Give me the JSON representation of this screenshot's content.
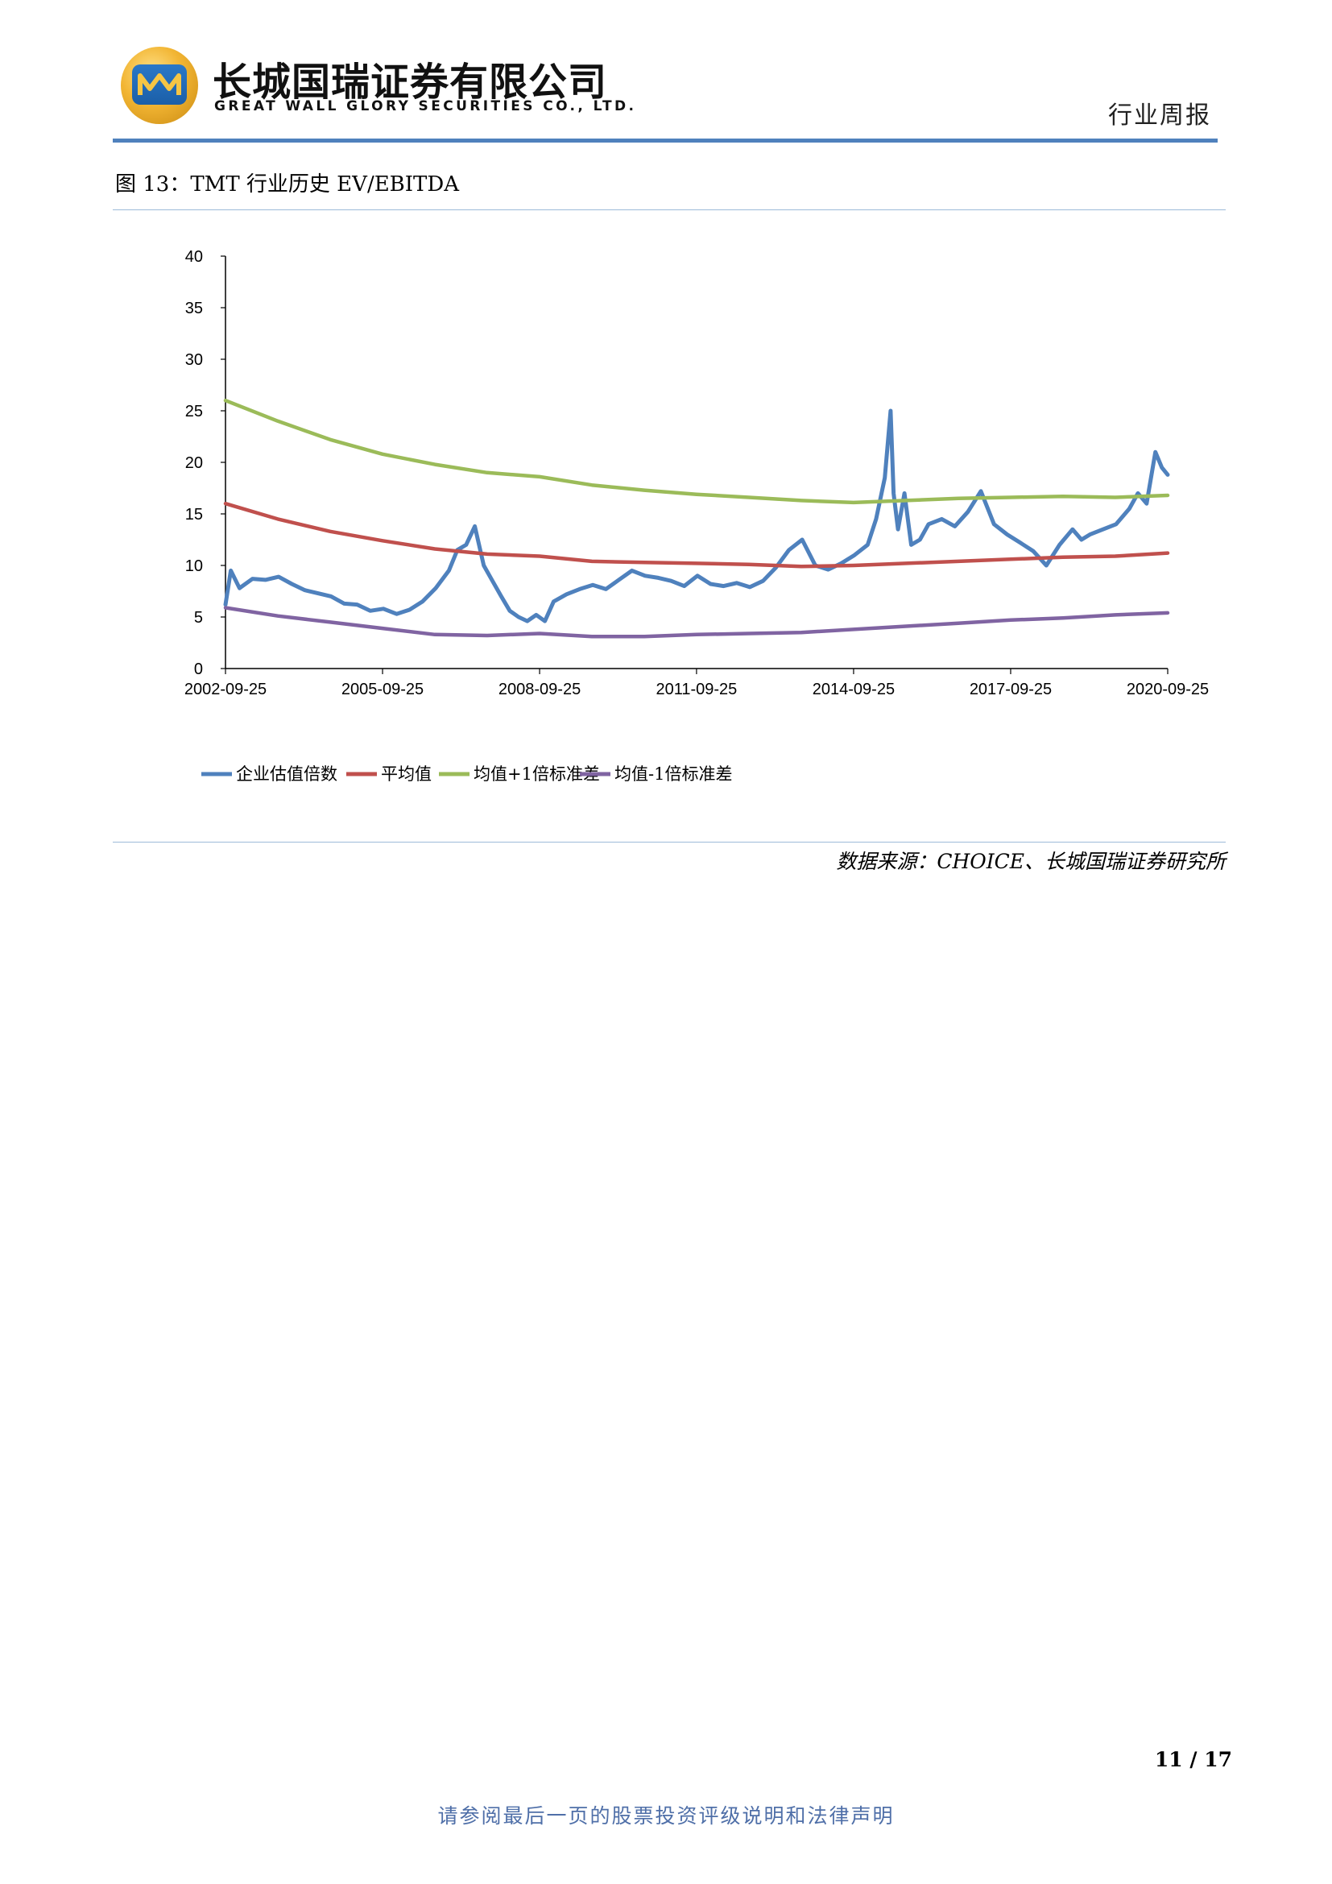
{
  "header": {
    "company_cn": "长城国瑞证券有限公司",
    "company_en": "GREAT WALL GLORY SECURITIES CO., LTD.",
    "report_type": "行业周报"
  },
  "figure": {
    "title": "图 13：TMT 行业历史 EV/EBITDA"
  },
  "chart_data": {
    "type": "line",
    "title": "",
    "xlabel": "",
    "ylabel": "",
    "ylim": [
      0,
      40
    ],
    "yticks": [
      0,
      5,
      10,
      15,
      20,
      25,
      30,
      35,
      40
    ],
    "xticks": [
      "2002-09-25",
      "2005-09-25",
      "2008-09-25",
      "2011-09-25",
      "2014-09-25",
      "2017-09-25",
      "2020-09-25"
    ],
    "xrange": [
      "2002-09-25",
      "2020-09-25"
    ],
    "grid": false,
    "legend_position": "bottom",
    "series": [
      {
        "name": "企业估值倍数",
        "color": "#4f81bd",
        "x": [
          "2002-09-25",
          "2002-11-01",
          "2003-01-01",
          "2003-04-01",
          "2003-07-01",
          "2003-10-01",
          "2004-01-01",
          "2004-04-01",
          "2004-07-01",
          "2004-10-01",
          "2005-01-01",
          "2005-04-01",
          "2005-07-01",
          "2005-10-01",
          "2006-01-01",
          "2006-04-01",
          "2006-07-01",
          "2006-10-01",
          "2007-01-01",
          "2007-03-01",
          "2007-05-01",
          "2007-07-01",
          "2007-09-01",
          "2007-11-01",
          "2008-01-01",
          "2008-03-01",
          "2008-05-01",
          "2008-07-01",
          "2008-09-01",
          "2008-11-01",
          "2009-01-01",
          "2009-04-01",
          "2009-07-01",
          "2009-10-01",
          "2010-01-01",
          "2010-04-01",
          "2010-07-01",
          "2010-10-01",
          "2011-01-01",
          "2011-04-01",
          "2011-07-01",
          "2011-10-01",
          "2012-01-01",
          "2012-04-01",
          "2012-07-01",
          "2012-10-01",
          "2013-01-01",
          "2013-04-01",
          "2013-07-01",
          "2013-10-01",
          "2014-01-01",
          "2014-04-01",
          "2014-07-01",
          "2014-10-01",
          "2015-01-01",
          "2015-03-01",
          "2015-05-01",
          "2015-06-10",
          "2015-07-01",
          "2015-08-01",
          "2015-09-15",
          "2015-11-01",
          "2016-01-01",
          "2016-03-01",
          "2016-06-01",
          "2016-09-01",
          "2016-12-01",
          "2017-03-01",
          "2017-06-01",
          "2017-09-01",
          "2017-12-01",
          "2018-03-01",
          "2018-06-01",
          "2018-09-01",
          "2018-12-01",
          "2019-02-01",
          "2019-04-01",
          "2019-07-01",
          "2019-10-01",
          "2020-01-01",
          "2020-03-01",
          "2020-05-01",
          "2020-07-01",
          "2020-08-15",
          "2020-09-25"
        ],
        "values": [
          6.2,
          9.5,
          7.8,
          8.7,
          8.6,
          8.9,
          8.2,
          7.6,
          7.3,
          7.0,
          6.3,
          6.2,
          5.6,
          5.8,
          5.3,
          5.7,
          6.5,
          7.8,
          9.5,
          11.5,
          12.0,
          13.8,
          10.0,
          8.5,
          7.0,
          5.6,
          5.0,
          4.6,
          5.2,
          4.6,
          6.5,
          7.2,
          7.7,
          8.1,
          7.7,
          8.6,
          9.5,
          9.0,
          8.8,
          8.5,
          8.0,
          9.0,
          8.2,
          8.0,
          8.3,
          7.9,
          8.5,
          9.8,
          11.5,
          12.5,
          10.0,
          9.6,
          10.2,
          11.0,
          12.0,
          14.5,
          18.5,
          25.0,
          17.0,
          13.5,
          17.0,
          12.0,
          12.5,
          14.0,
          14.5,
          13.8,
          15.2,
          17.2,
          14.0,
          13.0,
          12.2,
          11.4,
          10.0,
          12.0,
          13.5,
          12.5,
          13.0,
          13.5,
          14.0,
          15.5,
          17.0,
          16.0,
          21.0,
          19.5,
          18.8
        ]
      },
      {
        "name": "平均值",
        "color": "#c0504d",
        "x": [
          "2002-09-25",
          "2003-09-25",
          "2004-09-25",
          "2005-09-25",
          "2006-09-25",
          "2007-09-25",
          "2008-09-25",
          "2009-09-25",
          "2010-09-25",
          "2011-09-25",
          "2012-09-25",
          "2013-09-25",
          "2014-09-25",
          "2015-09-25",
          "2016-09-25",
          "2017-09-25",
          "2018-09-25",
          "2019-09-25",
          "2020-09-25"
        ],
        "values": [
          16.0,
          14.5,
          13.3,
          12.4,
          11.6,
          11.1,
          10.9,
          10.4,
          10.3,
          10.2,
          10.1,
          9.9,
          10.0,
          10.2,
          10.4,
          10.6,
          10.8,
          10.9,
          11.2
        ]
      },
      {
        "name": "均值+1倍标准差",
        "color": "#9bbb59",
        "x": [
          "2002-09-25",
          "2003-09-25",
          "2004-09-25",
          "2005-09-25",
          "2006-09-25",
          "2007-09-25",
          "2008-09-25",
          "2009-09-25",
          "2010-09-25",
          "2011-09-25",
          "2012-09-25",
          "2013-09-25",
          "2014-09-25",
          "2015-09-25",
          "2016-09-25",
          "2017-09-25",
          "2018-09-25",
          "2019-09-25",
          "2020-09-25"
        ],
        "values": [
          26.0,
          24.0,
          22.2,
          20.8,
          19.8,
          19.0,
          18.6,
          17.8,
          17.3,
          16.9,
          16.6,
          16.3,
          16.1,
          16.3,
          16.5,
          16.6,
          16.7,
          16.6,
          16.8
        ]
      },
      {
        "name": "均值-1倍标准差",
        "color": "#8064a2",
        "x": [
          "2002-09-25",
          "2003-09-25",
          "2004-09-25",
          "2005-09-25",
          "2006-09-25",
          "2007-09-25",
          "2008-09-25",
          "2009-09-25",
          "2010-09-25",
          "2011-09-25",
          "2012-09-25",
          "2013-09-25",
          "2014-09-25",
          "2015-09-25",
          "2016-09-25",
          "2017-09-25",
          "2018-09-25",
          "2019-09-25",
          "2020-09-25"
        ],
        "values": [
          5.9,
          5.1,
          4.5,
          3.9,
          3.3,
          3.2,
          3.4,
          3.1,
          3.1,
          3.3,
          3.4,
          3.5,
          3.8,
          4.1,
          4.4,
          4.7,
          4.9,
          5.2,
          5.4
        ]
      }
    ]
  },
  "source": "数据来源：CHOICE、长城国瑞证券研究所",
  "page": {
    "current": "11",
    "total": "17",
    "label": "11 / 17"
  },
  "footer": "请参阅最后一页的股票投资评级说明和法律声明"
}
